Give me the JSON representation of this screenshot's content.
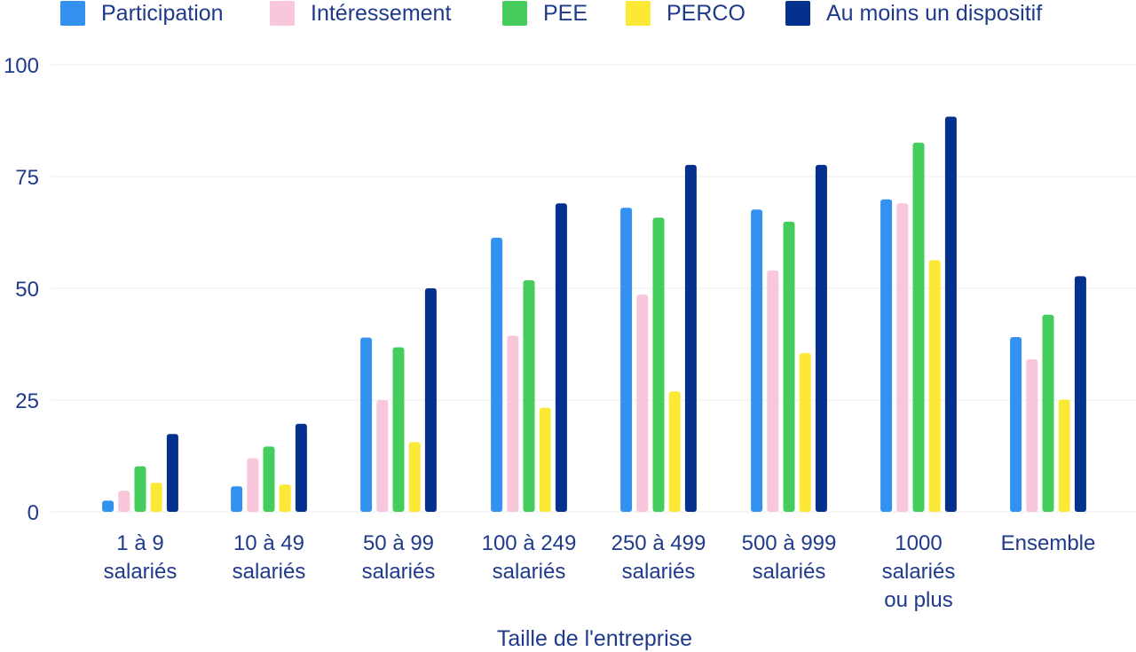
{
  "chart_data": {
    "type": "bar",
    "xlabel": "Taille de l'entreprise",
    "ylabel": "",
    "ylim": [
      0,
      100
    ],
    "yticks": [
      0,
      25,
      50,
      75,
      100
    ],
    "grid": true,
    "legend_position": "top",
    "categories": [
      [
        "1 à 9",
        "salariés"
      ],
      [
        "10 à 49",
        "salariés"
      ],
      [
        "50 à 99",
        "salariés"
      ],
      [
        "100 à 249",
        "salariés"
      ],
      [
        "250 à 499",
        "salariés"
      ],
      [
        "500 à 999",
        "salariés"
      ],
      [
        "1000",
        "salariés",
        "ou plus"
      ],
      [
        "Ensemble"
      ]
    ],
    "series": [
      {
        "name": "Participation",
        "color": "#3391f0",
        "values": [
          2.5,
          5.7,
          39,
          61.3,
          68,
          67.6,
          69.9,
          39.1
        ]
      },
      {
        "name": "Intéressement",
        "color": "#f9c7dc",
        "values": [
          4.7,
          12,
          25,
          39.4,
          48.6,
          54,
          69,
          34.1
        ]
      },
      {
        "name": "PEE",
        "color": "#44cd5c",
        "values": [
          10.2,
          14.6,
          36.8,
          51.8,
          65.8,
          64.9,
          82.6,
          44.1
        ]
      },
      {
        "name": "PERCO",
        "color": "#fbe935",
        "values": [
          6.5,
          6.1,
          15.6,
          23.3,
          26.9,
          35.5,
          56.3,
          25.1
        ]
      },
      {
        "name": "Au moins un dispositif",
        "color": "#04308e",
        "values": [
          17.4,
          19.7,
          50,
          69,
          77.6,
          77.6,
          88.4,
          52.7
        ]
      }
    ]
  }
}
